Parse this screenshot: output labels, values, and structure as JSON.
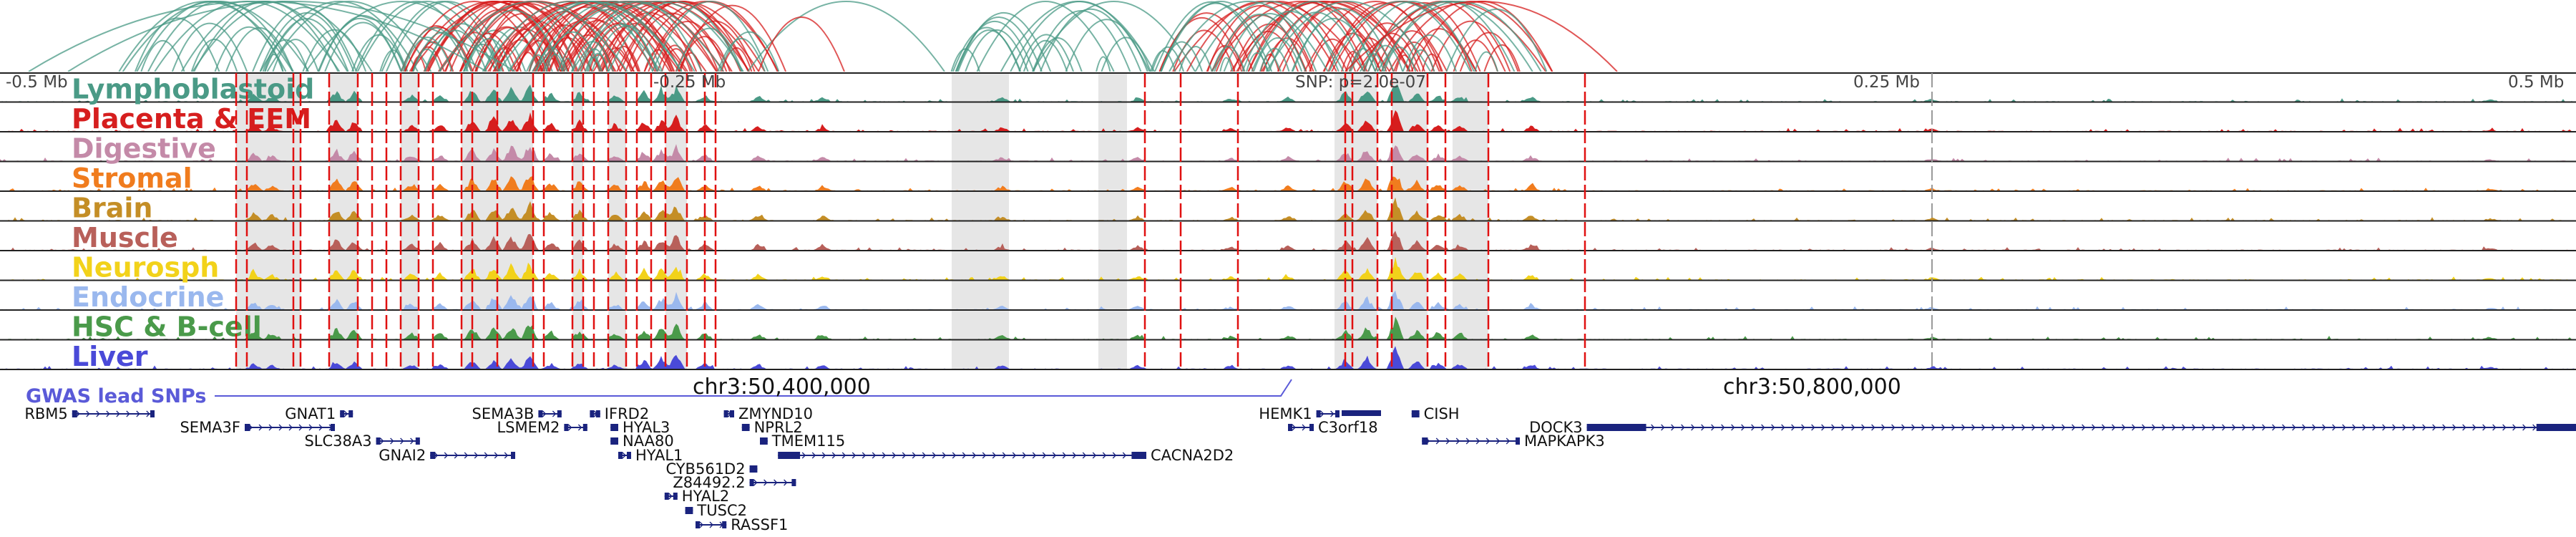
{
  "axis": {
    "ticks": [
      {
        "label": "-0.5 Mb",
        "pos": "left"
      },
      {
        "label": "-0.25 Mb",
        "pos": "q1"
      },
      {
        "label": "SNP: p=2.0e-07",
        "pos": "snp"
      },
      {
        "label": "0.25 Mb",
        "pos": "q3"
      },
      {
        "label": "0.5 Mb",
        "pos": "right"
      }
    ]
  },
  "tracks": [
    {
      "name": "Lymphoblastoid",
      "color": "#4a9a86"
    },
    {
      "name": "Placenta & EEM",
      "color": "#d61e1e"
    },
    {
      "name": "Digestive",
      "color": "#c48aa8"
    },
    {
      "name": "Stromal",
      "color": "#f07c1e"
    },
    {
      "name": "Brain",
      "color": "#c48e26"
    },
    {
      "name": "Muscle",
      "color": "#b8605a"
    },
    {
      "name": "Neurosph",
      "color": "#f2d21a"
    },
    {
      "name": "Endocrine",
      "color": "#9ab8ee"
    },
    {
      "name": "HSC & B-cell",
      "color": "#4a9a4a"
    },
    {
      "name": "Liver",
      "color": "#4a4ad8"
    }
  ],
  "gwas_label": "GWAS lead SNPs",
  "coords": [
    "chr3:50,400,000",
    "chr3:50,800,000"
  ],
  "genes": [
    {
      "name": "RBM5",
      "label_side": "left",
      "row": 0,
      "start": 0.028,
      "end": 0.06
    },
    {
      "name": "GNAT1",
      "label_side": "left",
      "row": 0,
      "start": 0.132,
      "end": 0.137
    },
    {
      "name": "SEMA3B",
      "label_side": "left",
      "row": 0,
      "start": 0.209,
      "end": 0.218
    },
    {
      "name": "IFRD2",
      "label_side": "right",
      "row": 0,
      "start": 0.229,
      "end": 0.233
    },
    {
      "name": "ZMYND10",
      "label_side": "right",
      "row": 0,
      "start": 0.281,
      "end": 0.285
    },
    {
      "name": "HEMK1",
      "label_side": "left",
      "row": 0,
      "start": 0.511,
      "end": 0.52
    },
    {
      "name": "CISH",
      "label_side": "right",
      "row": 0,
      "start": 0.548,
      "end": 0.551
    },
    {
      "name": "SEMA3F",
      "label_side": "left",
      "row": 1,
      "start": 0.095,
      "end": 0.13
    },
    {
      "name": "LSMEM2",
      "label_side": "left",
      "row": 1,
      "start": 0.219,
      "end": 0.228
    },
    {
      "name": "HYAL3",
      "label_side": "right",
      "row": 1,
      "start": 0.237,
      "end": 0.24
    },
    {
      "name": "NPRL2",
      "label_side": "right",
      "row": 1,
      "start": 0.288,
      "end": 0.291
    },
    {
      "name": "C3orf18",
      "label_side": "right",
      "row": 1,
      "start": 0.5,
      "end": 0.51
    },
    {
      "name": "DOCK3",
      "label_side": "left",
      "row": 1,
      "start": 0.616,
      "end": 1.0
    },
    {
      "name": "SLC38A3",
      "label_side": "left",
      "row": 2,
      "start": 0.146,
      "end": 0.163
    },
    {
      "name": "NAA80",
      "label_side": "right",
      "row": 2,
      "start": 0.237,
      "end": 0.24
    },
    {
      "name": "TMEM115",
      "label_side": "right",
      "row": 2,
      "start": 0.295,
      "end": 0.298
    },
    {
      "name": "MAPKAPK3",
      "label_side": "right",
      "row": 2,
      "start": 0.552,
      "end": 0.59
    },
    {
      "name": "GNAI2",
      "label_side": "left",
      "row": 3,
      "start": 0.167,
      "end": 0.2
    },
    {
      "name": "HYAL1",
      "label_side": "right",
      "row": 3,
      "start": 0.24,
      "end": 0.245
    },
    {
      "name": "CACNA2D2",
      "label_side": "right",
      "row": 3,
      "start": 0.302,
      "end": 0.445
    },
    {
      "name": "CYB561D2",
      "label_side": "left",
      "row": 4,
      "start": 0.291,
      "end": 0.294
    },
    {
      "name": "Z84492.2",
      "label_side": "left",
      "row": 5,
      "start": 0.291,
      "end": 0.309
    },
    {
      "name": "HYAL2",
      "label_side": "right",
      "row": 6,
      "start": 0.258,
      "end": 0.263
    },
    {
      "name": "TUSC2",
      "label_side": "right",
      "row": 7,
      "start": 0.266,
      "end": 0.269
    },
    {
      "name": "RASSF1",
      "label_side": "right",
      "row": 8,
      "start": 0.27,
      "end": 0.282
    }
  ]
}
